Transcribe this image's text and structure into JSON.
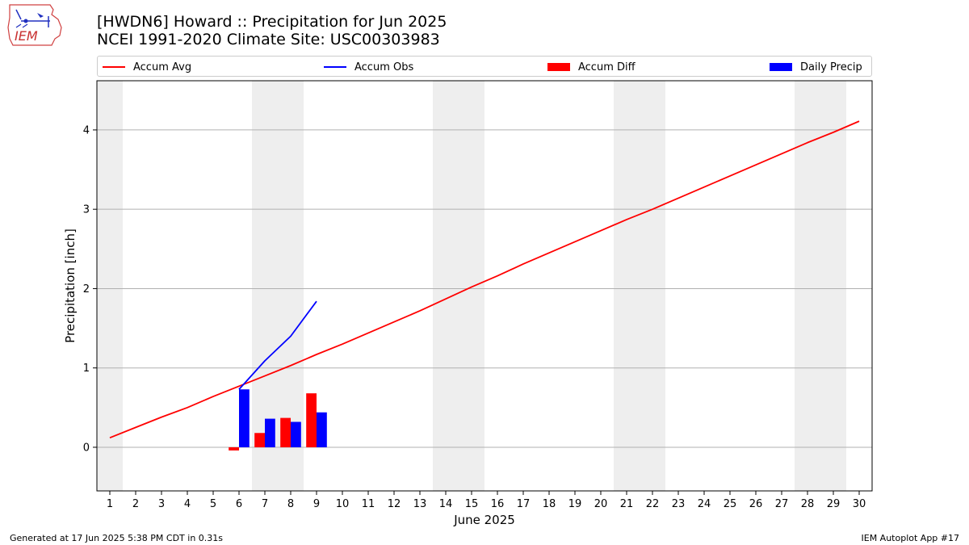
{
  "header": {
    "logo_text": "IEM",
    "title_line1": "[HWDN6] Howard :: Precipitation for Jun 2025",
    "title_line2": "NCEI 1991-2020 Climate Site: USC00303983"
  },
  "legend": {
    "items": [
      {
        "label": "Accum Avg",
        "kind": "line",
        "color": "#ff0000"
      },
      {
        "label": "Accum Obs",
        "kind": "line",
        "color": "#0000ff"
      },
      {
        "label": "Accum Diff",
        "kind": "box",
        "color": "#ff0000"
      },
      {
        "label": "Daily Precip",
        "kind": "box",
        "color": "#0000ff"
      }
    ]
  },
  "footer": {
    "left": "Generated at 17 Jun 2025 5:38 PM CDT in 0.31s",
    "right": "IEM Autoplot App #17"
  },
  "chart_data": {
    "type": "bar",
    "xlabel": "June 2025",
    "ylabel": "Precipitation [inch]",
    "xlim": [
      0.5,
      30.5
    ],
    "ylim": [
      -0.55,
      4.62
    ],
    "yticks": [
      0,
      1,
      2,
      3,
      4
    ],
    "x": [
      1,
      2,
      3,
      4,
      5,
      6,
      7,
      8,
      9,
      10,
      11,
      12,
      13,
      14,
      15,
      16,
      17,
      18,
      19,
      20,
      21,
      22,
      23,
      24,
      25,
      26,
      27,
      28,
      29,
      30
    ],
    "weekend_days": [
      1,
      7,
      8,
      14,
      15,
      21,
      22,
      28,
      29
    ],
    "grid": "y",
    "legend_position": "top",
    "series": [
      {
        "name": "Accum Avg",
        "kind": "line",
        "color": "#ff0000",
        "x": [
          1,
          2,
          3,
          4,
          5,
          6,
          7,
          8,
          9,
          10,
          11,
          12,
          13,
          14,
          15,
          16,
          17,
          18,
          19,
          20,
          21,
          22,
          23,
          24,
          25,
          26,
          27,
          28,
          29,
          30
        ],
        "values": [
          0.12,
          0.25,
          0.38,
          0.5,
          0.64,
          0.77,
          0.9,
          1.03,
          1.17,
          1.3,
          1.44,
          1.58,
          1.72,
          1.87,
          2.02,
          2.16,
          2.31,
          2.45,
          2.59,
          2.73,
          2.87,
          3.0,
          3.14,
          3.28,
          3.42,
          3.56,
          3.7,
          3.84,
          3.97,
          4.11
        ]
      },
      {
        "name": "Accum Obs",
        "kind": "line",
        "color": "#0000ff",
        "x": [
          6,
          7,
          8,
          9
        ],
        "values": [
          0.73,
          1.09,
          1.4,
          1.84
        ]
      },
      {
        "name": "Accum Diff",
        "kind": "bar",
        "color": "#ff0000",
        "x": [
          6,
          7,
          8,
          9
        ],
        "values": [
          -0.04,
          0.18,
          0.37,
          0.68
        ]
      },
      {
        "name": "Daily Precip",
        "kind": "bar",
        "color": "#0000ff",
        "x": [
          6,
          7,
          8,
          9
        ],
        "values": [
          0.73,
          0.36,
          0.32,
          0.44
        ]
      }
    ]
  }
}
